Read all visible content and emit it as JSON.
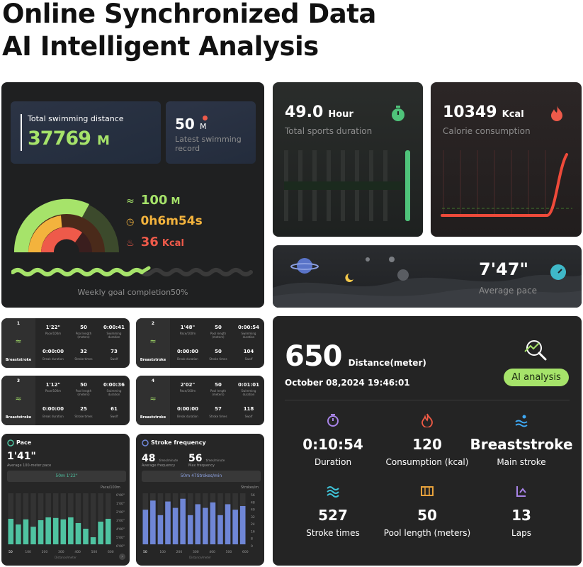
{
  "hero": {
    "line1": "Online Synchronized Data",
    "line2": "AI Intelligent Analysis"
  },
  "swim_summary": {
    "total_label": "Total swimming distance",
    "total_value": "37769",
    "total_unit": "M",
    "latest_value": "50",
    "latest_unit": "M",
    "latest_label": "Latest swimming record",
    "stat_distance": "100",
    "stat_distance_unit": "M",
    "stat_time": "0h6m54s",
    "stat_kcal": "36",
    "stat_kcal_unit": "Kcal",
    "goal_text": "Weekly goal completion50%",
    "goal_fraction": 0.5
  },
  "sports_duration": {
    "value": "49.0",
    "unit": "Hour",
    "label": "Total sports duration"
  },
  "calorie": {
    "value": "10349",
    "unit": "Kcal",
    "label": "Calorie consumption"
  },
  "pace_banner": {
    "value": "7'47\"",
    "label": "Average pace"
  },
  "laps": [
    {
      "num": "1",
      "pace": "1'22\"",
      "pace_label": "Pace/100m",
      "pool": "50",
      "pool_label": "Pool length (meters)",
      "dur": "0:00:41",
      "dur_label": "Swimming duration",
      "brk": "0:00:00",
      "brk_label": "Break duration",
      "strokes": "32",
      "strokes_label": "Stroke times",
      "swolf": "73",
      "swolf_label": "Swolf",
      "style": "Breaststroke"
    },
    {
      "num": "2",
      "pace": "1'48\"",
      "pace_label": "Pace/100m",
      "pool": "50",
      "pool_label": "Pool length (meters)",
      "dur": "0:00:54",
      "dur_label": "Swimming duration",
      "brk": "0:00:00",
      "brk_label": "Break duration",
      "strokes": "50",
      "strokes_label": "Stroke times",
      "swolf": "104",
      "swolf_label": "Swolf",
      "style": "Breaststroke"
    },
    {
      "num": "3",
      "pace": "1'12\"",
      "pace_label": "Pace/100m",
      "pool": "50",
      "pool_label": "Pool length (meters)",
      "dur": "0:00:36",
      "dur_label": "Swimming duration",
      "brk": "0:00:00",
      "brk_label": "Break duration",
      "strokes": "25",
      "strokes_label": "Stroke times",
      "swolf": "61",
      "swolf_label": "Swolf",
      "style": "Breaststroke"
    },
    {
      "num": "4",
      "pace": "2'02\"",
      "pace_label": "Pace/100m",
      "pool": "50",
      "pool_label": "Pool length (meters)",
      "dur": "0:01:01",
      "dur_label": "Swimming duration",
      "brk": "0:00:00",
      "brk_label": "Break duration",
      "strokes": "57",
      "strokes_label": "Stroke times",
      "swolf": "118",
      "swolf_label": "Swolf",
      "style": "Breaststroke"
    }
  ],
  "pace_card": {
    "title": "Pace",
    "value": "1'41\"",
    "sub": "Average 100-meter pace",
    "pill": "50m 1'22\"",
    "axis_label": "Pace/100m",
    "bottom_label": "Distance/meter"
  },
  "stroke_card": {
    "title": "Stroke frequency",
    "avg_value": "48",
    "avg_unit": "times/minute",
    "avg_label": "Average frequency",
    "max_value": "56",
    "max_unit": "times/minute",
    "max_label": "Max frequency",
    "pill": "50m 47Strokes/min",
    "axis_label": "Strokes/m",
    "bottom_label": "Distance/meter"
  },
  "chart_data": [
    {
      "type": "bar",
      "title": "Pace",
      "ylabel": "Pace/100m",
      "y_ticks": [
        "0'00\"",
        "1'00\"",
        "2'00\"",
        "3'00\"",
        "4'00\"",
        "5'00\"",
        "6'00\""
      ],
      "x_ticks": [
        "50",
        "100",
        "200",
        "300",
        "400",
        "500",
        "600"
      ],
      "values_seconds": [
        90,
        70,
        88,
        62,
        85,
        95,
        93,
        88,
        95,
        75,
        55,
        25,
        80,
        90
      ],
      "ylim_seconds": [
        0,
        360
      ],
      "color": "#4fc3a1"
    },
    {
      "type": "bar",
      "title": "Stroke frequency",
      "ylabel": "Strokes/m",
      "y_ticks": [
        "56",
        "48",
        "40",
        "32",
        "24",
        "16",
        "8",
        "0"
      ],
      "x_ticks": [
        "50",
        "100",
        "200",
        "300",
        "400",
        "500",
        "600"
      ],
      "values": [
        38,
        48,
        32,
        47,
        40,
        50,
        32,
        44,
        40,
        46,
        32,
        44,
        38,
        42
      ],
      "ylim": [
        0,
        56
      ],
      "color": "#6f86d6"
    }
  ],
  "session": {
    "distance": "650",
    "distance_label": "Distance(meter)",
    "datetime": "October 08,2024 19:46:01",
    "ai_button": "AI analysis",
    "stats": [
      {
        "icon": "stopwatch-icon",
        "value": "0:10:54",
        "label": "Duration",
        "color": "#a884e8"
      },
      {
        "icon": "flame-icon",
        "value": "120",
        "label": "Consumption (kcal)",
        "color": "#ef5a45"
      },
      {
        "icon": "swim-icon",
        "value": "Breaststroke",
        "label": "Main stroke",
        "color": "#3fa9f5"
      },
      {
        "icon": "waves-icon",
        "value": "527",
        "label": "Stroke times",
        "color": "#3fc3d8"
      },
      {
        "icon": "pool-icon",
        "value": "50",
        "label": "Pool length (meters)",
        "color": "#e8a23c"
      },
      {
        "icon": "laps-icon",
        "value": "13",
        "label": "Laps",
        "color": "#a884e8"
      }
    ]
  },
  "colors": {
    "green": "#a6e36a",
    "orange": "#f3b33d",
    "red": "#ee5a4a",
    "card": "#262626"
  }
}
